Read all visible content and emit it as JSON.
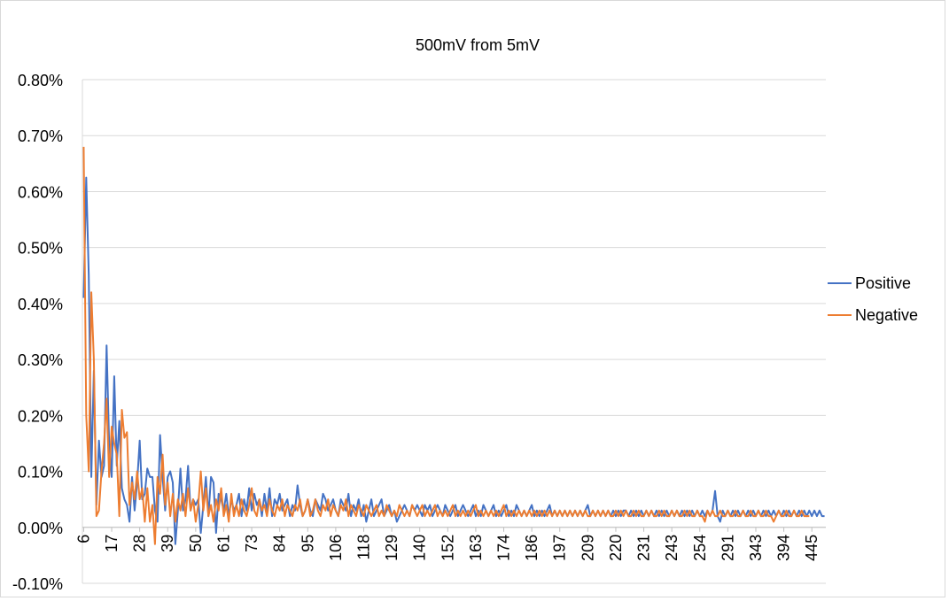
{
  "chart_data": {
    "type": "line",
    "title": "500mV from 5mV",
    "xlabel": "",
    "ylabel": "",
    "ylim": [
      -0.001,
      0.008
    ],
    "y_ticks": [
      "0.80%",
      "0.70%",
      "0.60%",
      "0.50%",
      "0.40%",
      "0.30%",
      "0.20%",
      "0.10%",
      "0.00%",
      "-0.10%"
    ],
    "y_tick_values": [
      0.008,
      0.007,
      0.006,
      0.005,
      0.004,
      0.003,
      0.002,
      0.001,
      0.0,
      -0.001
    ],
    "x_tick_labels": [
      "6",
      "17",
      "28",
      "39",
      "50",
      "61",
      "73",
      "84",
      "95",
      "106",
      "118",
      "129",
      "140",
      "152",
      "163",
      "174",
      "186",
      "197",
      "209",
      "220",
      "231",
      "243",
      "254",
      "291",
      "343",
      "394",
      "445"
    ],
    "x_tick_label_every": 11,
    "grid": true,
    "legend_position": "right",
    "series": [
      {
        "name": "Positive",
        "color": "#4472c4",
        "values": [
          0.0041,
          0.00625,
          0.0045,
          0.0009,
          0.0028,
          0.0004,
          0.00155,
          0.0009,
          0.0011,
          0.00325,
          0.0015,
          0.0009,
          0.0027,
          0.0011,
          0.0019,
          0.0007,
          0.0005,
          0.0004,
          0.0001,
          0.0009,
          0.0003,
          0.0008,
          0.00155,
          0.0005,
          0.0006,
          0.00105,
          0.0009,
          0.0009,
          0.0003,
          0.0001,
          0.00165,
          0.0009,
          0.0003,
          0.0009,
          0.001,
          0.0008,
          -0.0003,
          0.0003,
          0.00105,
          0.0003,
          0.0005,
          0.0011,
          0.0003,
          0.0005,
          0.0004,
          0.0005,
          -0.0001,
          0.0004,
          0.0009,
          0.0002,
          0.0009,
          0.0008,
          -0.0001,
          0.0006,
          0.0005,
          0.0003,
          0.0006,
          0.0002,
          0.0005,
          0.0003,
          0.0004,
          0.0006,
          0.0002,
          0.0005,
          0.0003,
          0.0007,
          0.0003,
          0.0006,
          0.0004,
          0.0005,
          0.0002,
          0.0006,
          0.0003,
          0.0007,
          0.0002,
          0.0005,
          0.0004,
          0.0006,
          0.0003,
          0.0004,
          0.0005,
          0.0002,
          0.0004,
          0.0003,
          0.00075,
          0.0004,
          0.0002,
          0.0003,
          0.0005,
          0.0003,
          0.0002,
          0.0005,
          0.0004,
          0.0003,
          0.0006,
          0.0005,
          0.0003,
          0.0004,
          0.0005,
          0.0003,
          0.0002,
          0.0005,
          0.0004,
          0.0003,
          0.0006,
          0.0002,
          0.0004,
          0.0003,
          0.0005,
          0.0002,
          0.0004,
          0.0001,
          0.0003,
          0.0005,
          0.0002,
          0.0003,
          0.0004,
          0.0005,
          0.0002,
          0.0003,
          0.0004,
          0.0002,
          0.0003,
          0.0001,
          0.0002,
          0.0003,
          0.0004,
          0.0003,
          0.0002,
          0.0004,
          0.0003,
          0.0004,
          0.0003,
          0.0002,
          0.0004,
          0.0003,
          0.0004,
          0.0002,
          0.0003,
          0.0004,
          0.0003,
          0.0002,
          0.0004,
          0.0003,
          0.0002,
          0.0003,
          0.0004,
          0.0002,
          0.0003,
          0.0004,
          0.0003,
          0.0002,
          0.0003,
          0.0004,
          0.0002,
          0.0003,
          0.0002,
          0.0004,
          0.0003,
          0.0002,
          0.0003,
          0.0004,
          0.0002,
          0.0003,
          0.0002,
          0.0003,
          0.0004,
          0.0002,
          0.0003,
          0.0002,
          0.0004,
          0.0003,
          0.0002,
          0.0003,
          0.0002,
          0.0003,
          0.0004,
          0.0002,
          0.0003,
          0.0002,
          0.0003,
          0.0002,
          0.0003,
          0.0004,
          0.0002,
          0.0003,
          0.0002,
          0.0003,
          0.0002,
          0.0003,
          0.0002,
          0.0003,
          0.0002,
          0.0003,
          0.0002,
          0.0003,
          0.0002,
          0.0003,
          0.0004,
          0.0002,
          0.0003,
          0.0002,
          0.0003,
          0.0002,
          0.0003,
          0.0002,
          0.0003,
          0.0002,
          0.0003,
          0.0002,
          0.0003,
          0.0002,
          0.0003,
          0.0003,
          0.0002,
          0.0003,
          0.0002,
          0.0003,
          0.0002,
          0.0003,
          0.0002,
          0.0003,
          0.0002,
          0.0003,
          0.0002,
          0.0003,
          0.0002,
          0.0003,
          0.0002,
          0.0003,
          0.0002,
          0.0003,
          0.0002,
          0.0003,
          0.0002,
          0.0003,
          0.0002,
          0.0003,
          0.0002,
          0.0003,
          0.0002,
          0.0003,
          0.0002,
          0.0003,
          0.0002,
          0.0003,
          0.0002,
          0.0003,
          0.00065,
          0.0002,
          0.0001,
          0.0003,
          0.0002,
          0.0003,
          0.0002,
          0.0003,
          0.0002,
          0.0003,
          0.0002,
          0.0003,
          0.0002,
          0.0003,
          0.0002,
          0.0003,
          0.0002,
          0.0003,
          0.0002,
          0.0003,
          0.0002,
          0.0003,
          0.0002,
          0.0003,
          0.0002,
          0.0003,
          0.0002,
          0.0003,
          0.0002,
          0.0003,
          0.0002,
          0.0003,
          0.0002,
          0.0003,
          0.0002,
          0.0003,
          0.0002,
          0.0003,
          0.0002,
          0.0003,
          0.0002,
          0.0003,
          0.0002,
          0.0002
        ]
      },
      {
        "name": "Negative",
        "color": "#ed7d31",
        "values": [
          0.0068,
          0.002,
          0.001,
          0.0042,
          0.003,
          0.0002,
          0.0003,
          0.001,
          0.0015,
          0.0023,
          0.0009,
          0.0018,
          0.0015,
          0.0013,
          0.0002,
          0.0021,
          0.0016,
          0.0017,
          0.0004,
          0.0008,
          0.0005,
          0.001,
          0.0005,
          0.0007,
          0.0001,
          0.0007,
          0.0001,
          0.0004,
          -0.0003,
          0.0009,
          0.0006,
          0.0013,
          0.0004,
          0.0008,
          0.0002,
          0.0006,
          0.0001,
          0.0005,
          0.0003,
          0.0006,
          0.0002,
          0.0007,
          0.0003,
          0.0005,
          0.0001,
          0.0004,
          0.001,
          0.0003,
          0.0007,
          0.0002,
          0.0004,
          0.0001,
          0.0005,
          0.0003,
          0.0007,
          0.0002,
          0.0004,
          0.0001,
          0.0006,
          0.0002,
          0.0004,
          0.0002,
          0.0005,
          0.0003,
          0.0002,
          0.0004,
          0.0007,
          0.0003,
          0.0002,
          0.0005,
          0.0003,
          0.0004,
          0.0002,
          0.0005,
          0.0003,
          0.0002,
          0.0004,
          0.0003,
          0.0005,
          0.0002,
          0.0004,
          0.0003,
          0.0002,
          0.0004,
          0.0003,
          0.0005,
          0.0002,
          0.0003,
          0.0005,
          0.0002,
          0.0003,
          0.0005,
          0.0003,
          0.0002,
          0.0004,
          0.0003,
          0.0005,
          0.0002,
          0.0004,
          0.0003,
          0.0002,
          0.0004,
          0.0003,
          0.0005,
          0.0002,
          0.0004,
          0.0003,
          0.0002,
          0.0004,
          0.0003,
          0.0002,
          0.0004,
          0.0003,
          0.0002,
          0.0003,
          0.0004,
          0.0002,
          0.0003,
          0.0002,
          0.0004,
          0.0003,
          0.0002,
          0.0003,
          0.0002,
          0.0004,
          0.0003,
          0.0002,
          0.0003,
          0.0002,
          0.0004,
          0.0003,
          0.0002,
          0.0003,
          0.0004,
          0.0002,
          0.0003,
          0.0002,
          0.0003,
          0.0004,
          0.0002,
          0.0003,
          0.0002,
          0.0003,
          0.0002,
          0.0003,
          0.0004,
          0.0002,
          0.0003,
          0.0002,
          0.0003,
          0.0002,
          0.0003,
          0.0002,
          0.0003,
          0.0004,
          0.0002,
          0.0003,
          0.0002,
          0.0003,
          0.0002,
          0.0003,
          0.0002,
          0.0003,
          0.0002,
          0.0003,
          0.0004,
          0.0002,
          0.0003,
          0.0002,
          0.0003,
          0.0002,
          0.0003,
          0.0002,
          0.0003,
          0.0002,
          0.0003,
          0.0002,
          0.0003,
          0.0002,
          0.0003,
          0.0002,
          0.0003,
          0.0002,
          0.0003,
          0.0002,
          0.0003,
          0.0002,
          0.0003,
          0.0002,
          0.0003,
          0.0002,
          0.0003,
          0.0002,
          0.0003,
          0.0002,
          0.0003,
          0.0002,
          0.0003,
          0.0002,
          0.0002,
          0.0003,
          0.0002,
          0.0003,
          0.0002,
          0.0003,
          0.0002,
          0.0003,
          0.0002,
          0.0002,
          0.0003,
          0.0002,
          0.0003,
          0.0002,
          0.0003,
          0.0002,
          0.0002,
          0.0003,
          0.0002,
          0.0003,
          0.0002,
          0.0002,
          0.0003,
          0.0002,
          0.0003,
          0.0002,
          0.0002,
          0.0003,
          0.0002,
          0.0003,
          0.0002,
          0.0002,
          0.0003,
          0.0002,
          0.0003,
          0.0002,
          0.0002,
          0.0003,
          0.0002,
          0.0003,
          0.0002,
          0.0002,
          0.0003,
          0.0002,
          0.0002,
          0.0001,
          0.0003,
          0.0002,
          0.0003,
          0.0002,
          0.0002,
          0.0003,
          0.0002,
          0.0002,
          0.0003,
          0.0002,
          0.0002,
          0.0003,
          0.0002,
          0.0002,
          0.0003,
          0.0002,
          0.0002,
          0.0003,
          0.0002,
          0.0002,
          0.0003,
          0.0002,
          0.0002,
          0.0003,
          0.0002,
          0.0002,
          0.0001,
          0.0002,
          0.0003,
          0.0002,
          0.0002,
          0.0003,
          0.0002,
          0.0002,
          0.0003,
          0.0002,
          0.0002,
          0.0003,
          0.0002,
          0.0002,
          0.0002
        ]
      }
    ]
  }
}
